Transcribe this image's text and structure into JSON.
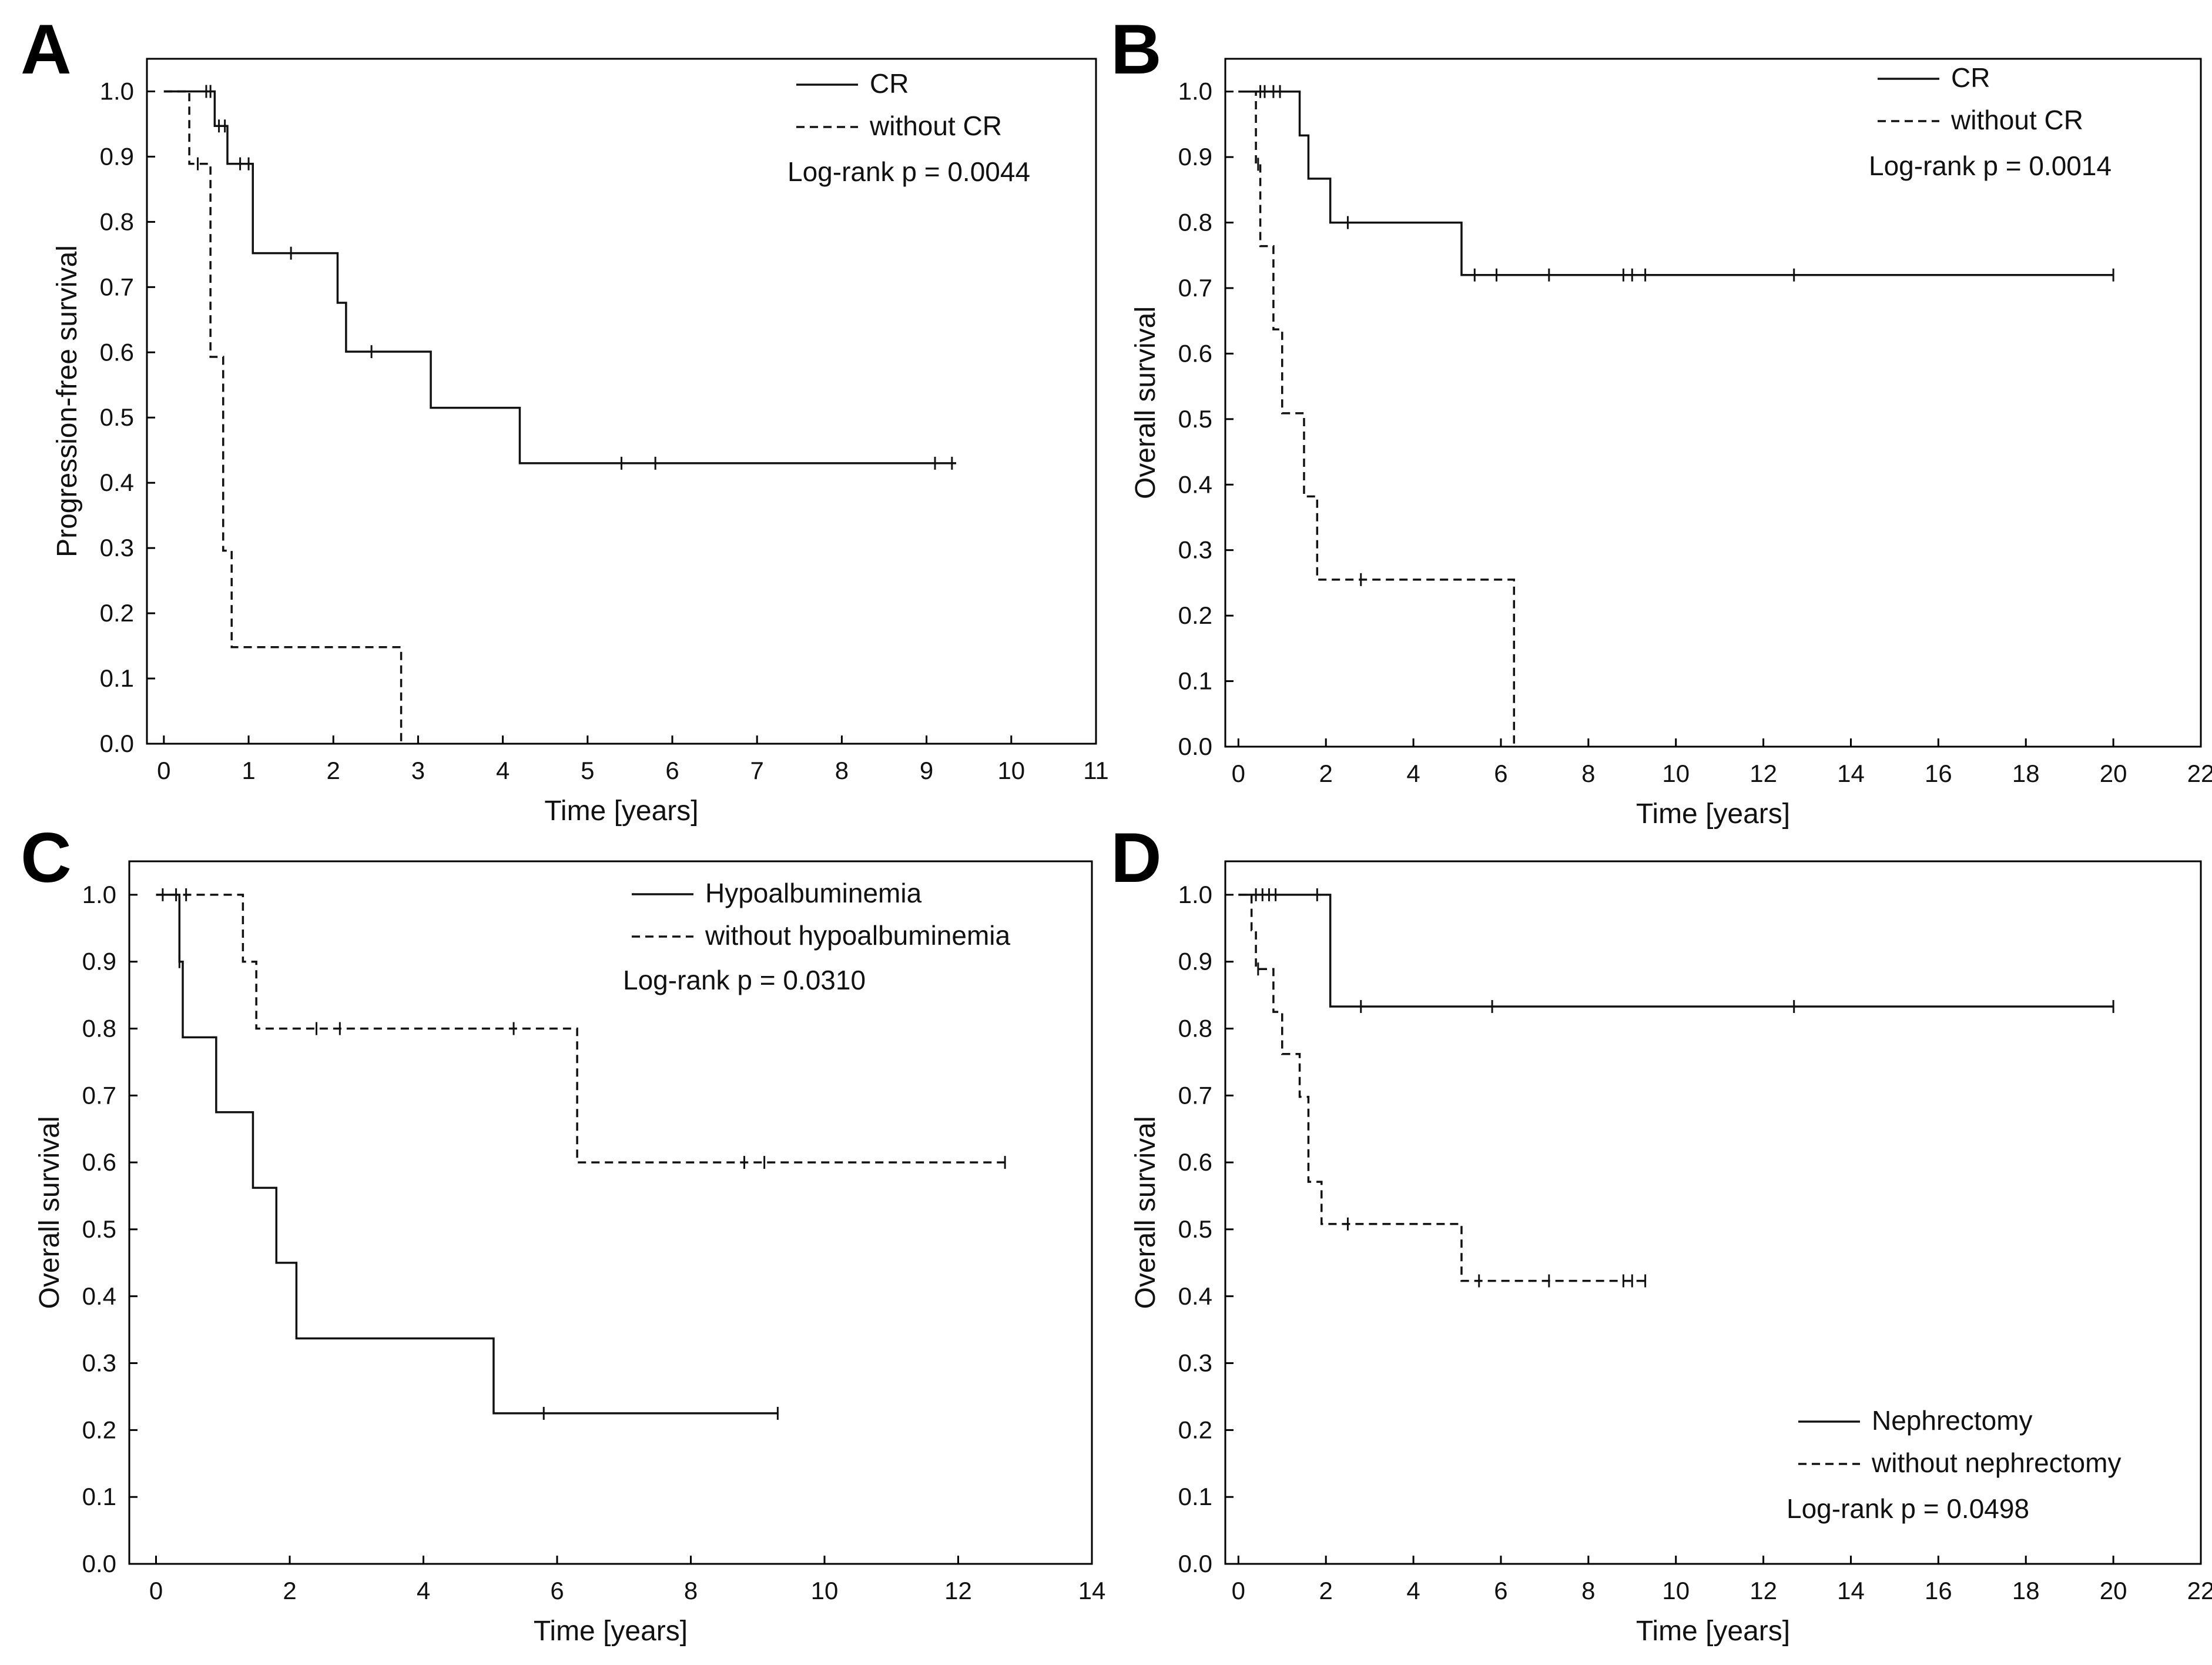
{
  "chart_data": [
    {
      "panel": "A",
      "type": "line",
      "xlabel": "Time [years]",
      "ylabel": "Progression-free survival",
      "xlim": [
        -0.2,
        11
      ],
      "ylim": [
        0,
        1.05
      ],
      "xticks": [
        "0",
        "1",
        "2",
        "3",
        "4",
        "5",
        "6",
        "7",
        "8",
        "9",
        "10",
        "11"
      ],
      "yticks": [
        "0.0",
        "0.1",
        "0.2",
        "0.3",
        "0.4",
        "0.5",
        "0.6",
        "0.7",
        "0.8",
        "0.9",
        "1.0"
      ],
      "legend_position": "top-right",
      "series": [
        {
          "name": "CR",
          "style": "solid",
          "x": [
            0,
            0.6,
            0.75,
            1.05,
            2.05,
            2.15,
            3.15,
            4.2,
            9.35
          ],
          "y": [
            1.0,
            0.947,
            0.889,
            0.752,
            0.676,
            0.601,
            0.515,
            0.43,
            0.43
          ],
          "censored": [
            [
              0.5,
              1.0
            ],
            [
              0.55,
              1.0
            ],
            [
              0.65,
              0.947
            ],
            [
              0.72,
              0.947
            ],
            [
              0.9,
              0.889
            ],
            [
              1.0,
              0.889
            ],
            [
              1.5,
              0.752
            ],
            [
              2.45,
              0.601
            ],
            [
              5.4,
              0.43
            ],
            [
              5.8,
              0.43
            ],
            [
              9.1,
              0.43
            ],
            [
              9.3,
              0.43
            ]
          ]
        },
        {
          "name": "without CR",
          "style": "dashed",
          "x": [
            0,
            0.3,
            0.55,
            0.7,
            0.8,
            2.8,
            2.8
          ],
          "y": [
            1.0,
            0.889,
            0.593,
            0.296,
            0.148,
            0.148,
            0.0
          ],
          "censored": [
            [
              0.4,
              0.889
            ]
          ]
        }
      ],
      "annotation": "Log-rank p = 0.0044"
    },
    {
      "panel": "B",
      "type": "line",
      "xlabel": "Time [years]",
      "ylabel": "Overall survival",
      "xlim": [
        -0.3,
        22
      ],
      "ylim": [
        0,
        1.05
      ],
      "xticks": [
        "0",
        "2",
        "4",
        "6",
        "8",
        "10",
        "12",
        "14",
        "16",
        "18",
        "20",
        "22"
      ],
      "yticks": [
        "0.0",
        "0.1",
        "0.2",
        "0.3",
        "0.4",
        "0.5",
        "0.6",
        "0.7",
        "0.8",
        "0.9",
        "1.0"
      ],
      "legend_position": "top-right",
      "series": [
        {
          "name": "CR",
          "style": "solid",
          "x": [
            0,
            1.4,
            1.6,
            2.1,
            5.1,
            20.0
          ],
          "y": [
            1.0,
            0.933,
            0.867,
            0.8,
            0.72,
            0.72
          ],
          "censored": [
            [
              0.5,
              1.0
            ],
            [
              0.6,
              1.0
            ],
            [
              0.8,
              1.0
            ],
            [
              0.95,
              1.0
            ],
            [
              2.5,
              0.8
            ],
            [
              5.4,
              0.72
            ],
            [
              5.9,
              0.72
            ],
            [
              7.1,
              0.72
            ],
            [
              8.8,
              0.72
            ],
            [
              9.0,
              0.72
            ],
            [
              9.3,
              0.72
            ],
            [
              12.7,
              0.72
            ],
            [
              20.0,
              0.72
            ]
          ]
        },
        {
          "name": "without CR",
          "style": "dashed",
          "x": [
            0,
            0.4,
            0.5,
            0.8,
            1.0,
            1.5,
            1.8,
            6.3,
            6.3
          ],
          "y": [
            1.0,
            0.889,
            0.764,
            0.637,
            0.509,
            0.382,
            0.255,
            0.255,
            0.0
          ],
          "censored": [
            [
              0.45,
              0.889
            ],
            [
              2.8,
              0.255
            ]
          ]
        }
      ],
      "annotation": "Log-rank p = 0.0014"
    },
    {
      "panel": "C",
      "type": "line",
      "xlabel": "Time [years]",
      "ylabel": "Overall survival",
      "xlim": [
        -0.4,
        14
      ],
      "ylim": [
        0,
        1.05
      ],
      "xticks": [
        "0",
        "2",
        "4",
        "6",
        "8",
        "10",
        "12",
        "14"
      ],
      "yticks": [
        "0.0",
        "0.1",
        "0.2",
        "0.3",
        "0.4",
        "0.5",
        "0.6",
        "0.7",
        "0.8",
        "0.9",
        "1.0"
      ],
      "legend_position": "top-right",
      "series": [
        {
          "name": "Hypoalbuminemia",
          "style": "solid",
          "x": [
            0,
            0.35,
            0.4,
            0.9,
            1.45,
            1.8,
            2.1,
            5.05,
            9.3
          ],
          "y": [
            1.0,
            0.9,
            0.787,
            0.675,
            0.562,
            0.45,
            0.337,
            0.225,
            0.225
          ],
          "censored": [
            [
              0.1,
              1.0
            ],
            [
              0.35,
              0.9
            ],
            [
              5.8,
              0.225
            ],
            [
              9.3,
              0.225
            ]
          ]
        },
        {
          "name": "without hypoalbuminemia",
          "style": "dashed",
          "x": [
            0,
            1.3,
            1.5,
            6.3,
            12.7
          ],
          "y": [
            1.0,
            0.9,
            0.8,
            0.6,
            0.6
          ],
          "censored": [
            [
              0.3,
              1.0
            ],
            [
              0.45,
              1.0
            ],
            [
              2.4,
              0.8
            ],
            [
              2.75,
              0.8
            ],
            [
              5.35,
              0.8
            ],
            [
              8.8,
              0.6
            ],
            [
              9.1,
              0.6
            ],
            [
              12.7,
              0.6
            ]
          ]
        }
      ],
      "annotation": "Log-rank p = 0.0310"
    },
    {
      "panel": "D",
      "type": "line",
      "xlabel": "Time [years]",
      "ylabel": "Overall survival",
      "xlim": [
        -0.3,
        22
      ],
      "ylim": [
        0,
        1.05
      ],
      "xticks": [
        "0",
        "2",
        "4",
        "6",
        "8",
        "10",
        "12",
        "14",
        "16",
        "18",
        "20",
        "22"
      ],
      "yticks": [
        "0.0",
        "0.1",
        "0.2",
        "0.3",
        "0.4",
        "0.5",
        "0.6",
        "0.7",
        "0.8",
        "0.9",
        "1.0"
      ],
      "legend_position": "bottom-right",
      "series": [
        {
          "name": "Nephrectomy",
          "style": "solid",
          "x": [
            0,
            2.1,
            20.0
          ],
          "y": [
            1.0,
            0.833,
            0.833
          ],
          "censored": [
            [
              0.4,
              1.0
            ],
            [
              1.8,
              1.0
            ],
            [
              2.8,
              0.833
            ],
            [
              5.8,
              0.833
            ],
            [
              12.7,
              0.833
            ],
            [
              20.0,
              0.833
            ]
          ]
        },
        {
          "name": "without nephrectomy",
          "style": "dashed",
          "x": [
            0,
            0.3,
            0.4,
            0.8,
            1.0,
            1.4,
            1.6,
            1.9,
            5.1,
            9.3
          ],
          "y": [
            1.0,
            0.947,
            0.889,
            0.825,
            0.762,
            0.698,
            0.571,
            0.508,
            0.423,
            0.423
          ],
          "censored": [
            [
              0.45,
              0.889
            ],
            [
              0.55,
              1.0
            ],
            [
              0.7,
              1.0
            ],
            [
              0.85,
              1.0
            ],
            [
              2.5,
              0.508
            ],
            [
              5.5,
              0.423
            ],
            [
              7.1,
              0.423
            ],
            [
              8.8,
              0.423
            ],
            [
              9.0,
              0.423
            ],
            [
              9.3,
              0.423
            ]
          ]
        }
      ],
      "annotation": "Log-rank p = 0.0498"
    }
  ]
}
